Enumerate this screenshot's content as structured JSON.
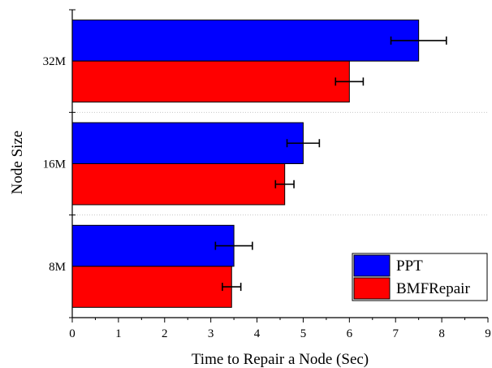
{
  "chart_data": {
    "type": "bar",
    "orientation": "horizontal",
    "categories": [
      "8M",
      "16M",
      "32M"
    ],
    "series": [
      {
        "name": "PPT",
        "color": "#0000ff",
        "values": [
          3.5,
          5.0,
          7.5
        ],
        "errors": [
          0.4,
          0.35,
          0.6
        ]
      },
      {
        "name": "BMFRepair",
        "color": "#ff0000",
        "values": [
          3.45,
          4.6,
          6.0
        ],
        "errors": [
          0.2,
          0.2,
          0.3
        ]
      }
    ],
    "xlabel": "Time to Repair a Node (Sec)",
    "ylabel": "Node Size",
    "xlim": [
      0,
      9
    ],
    "xticks": [
      "0",
      "1",
      "2",
      "3",
      "4",
      "5",
      "6",
      "7",
      "8",
      "9"
    ],
    "grid": "horizontal dotted separators between categories",
    "legend_position": "bottom-right"
  }
}
